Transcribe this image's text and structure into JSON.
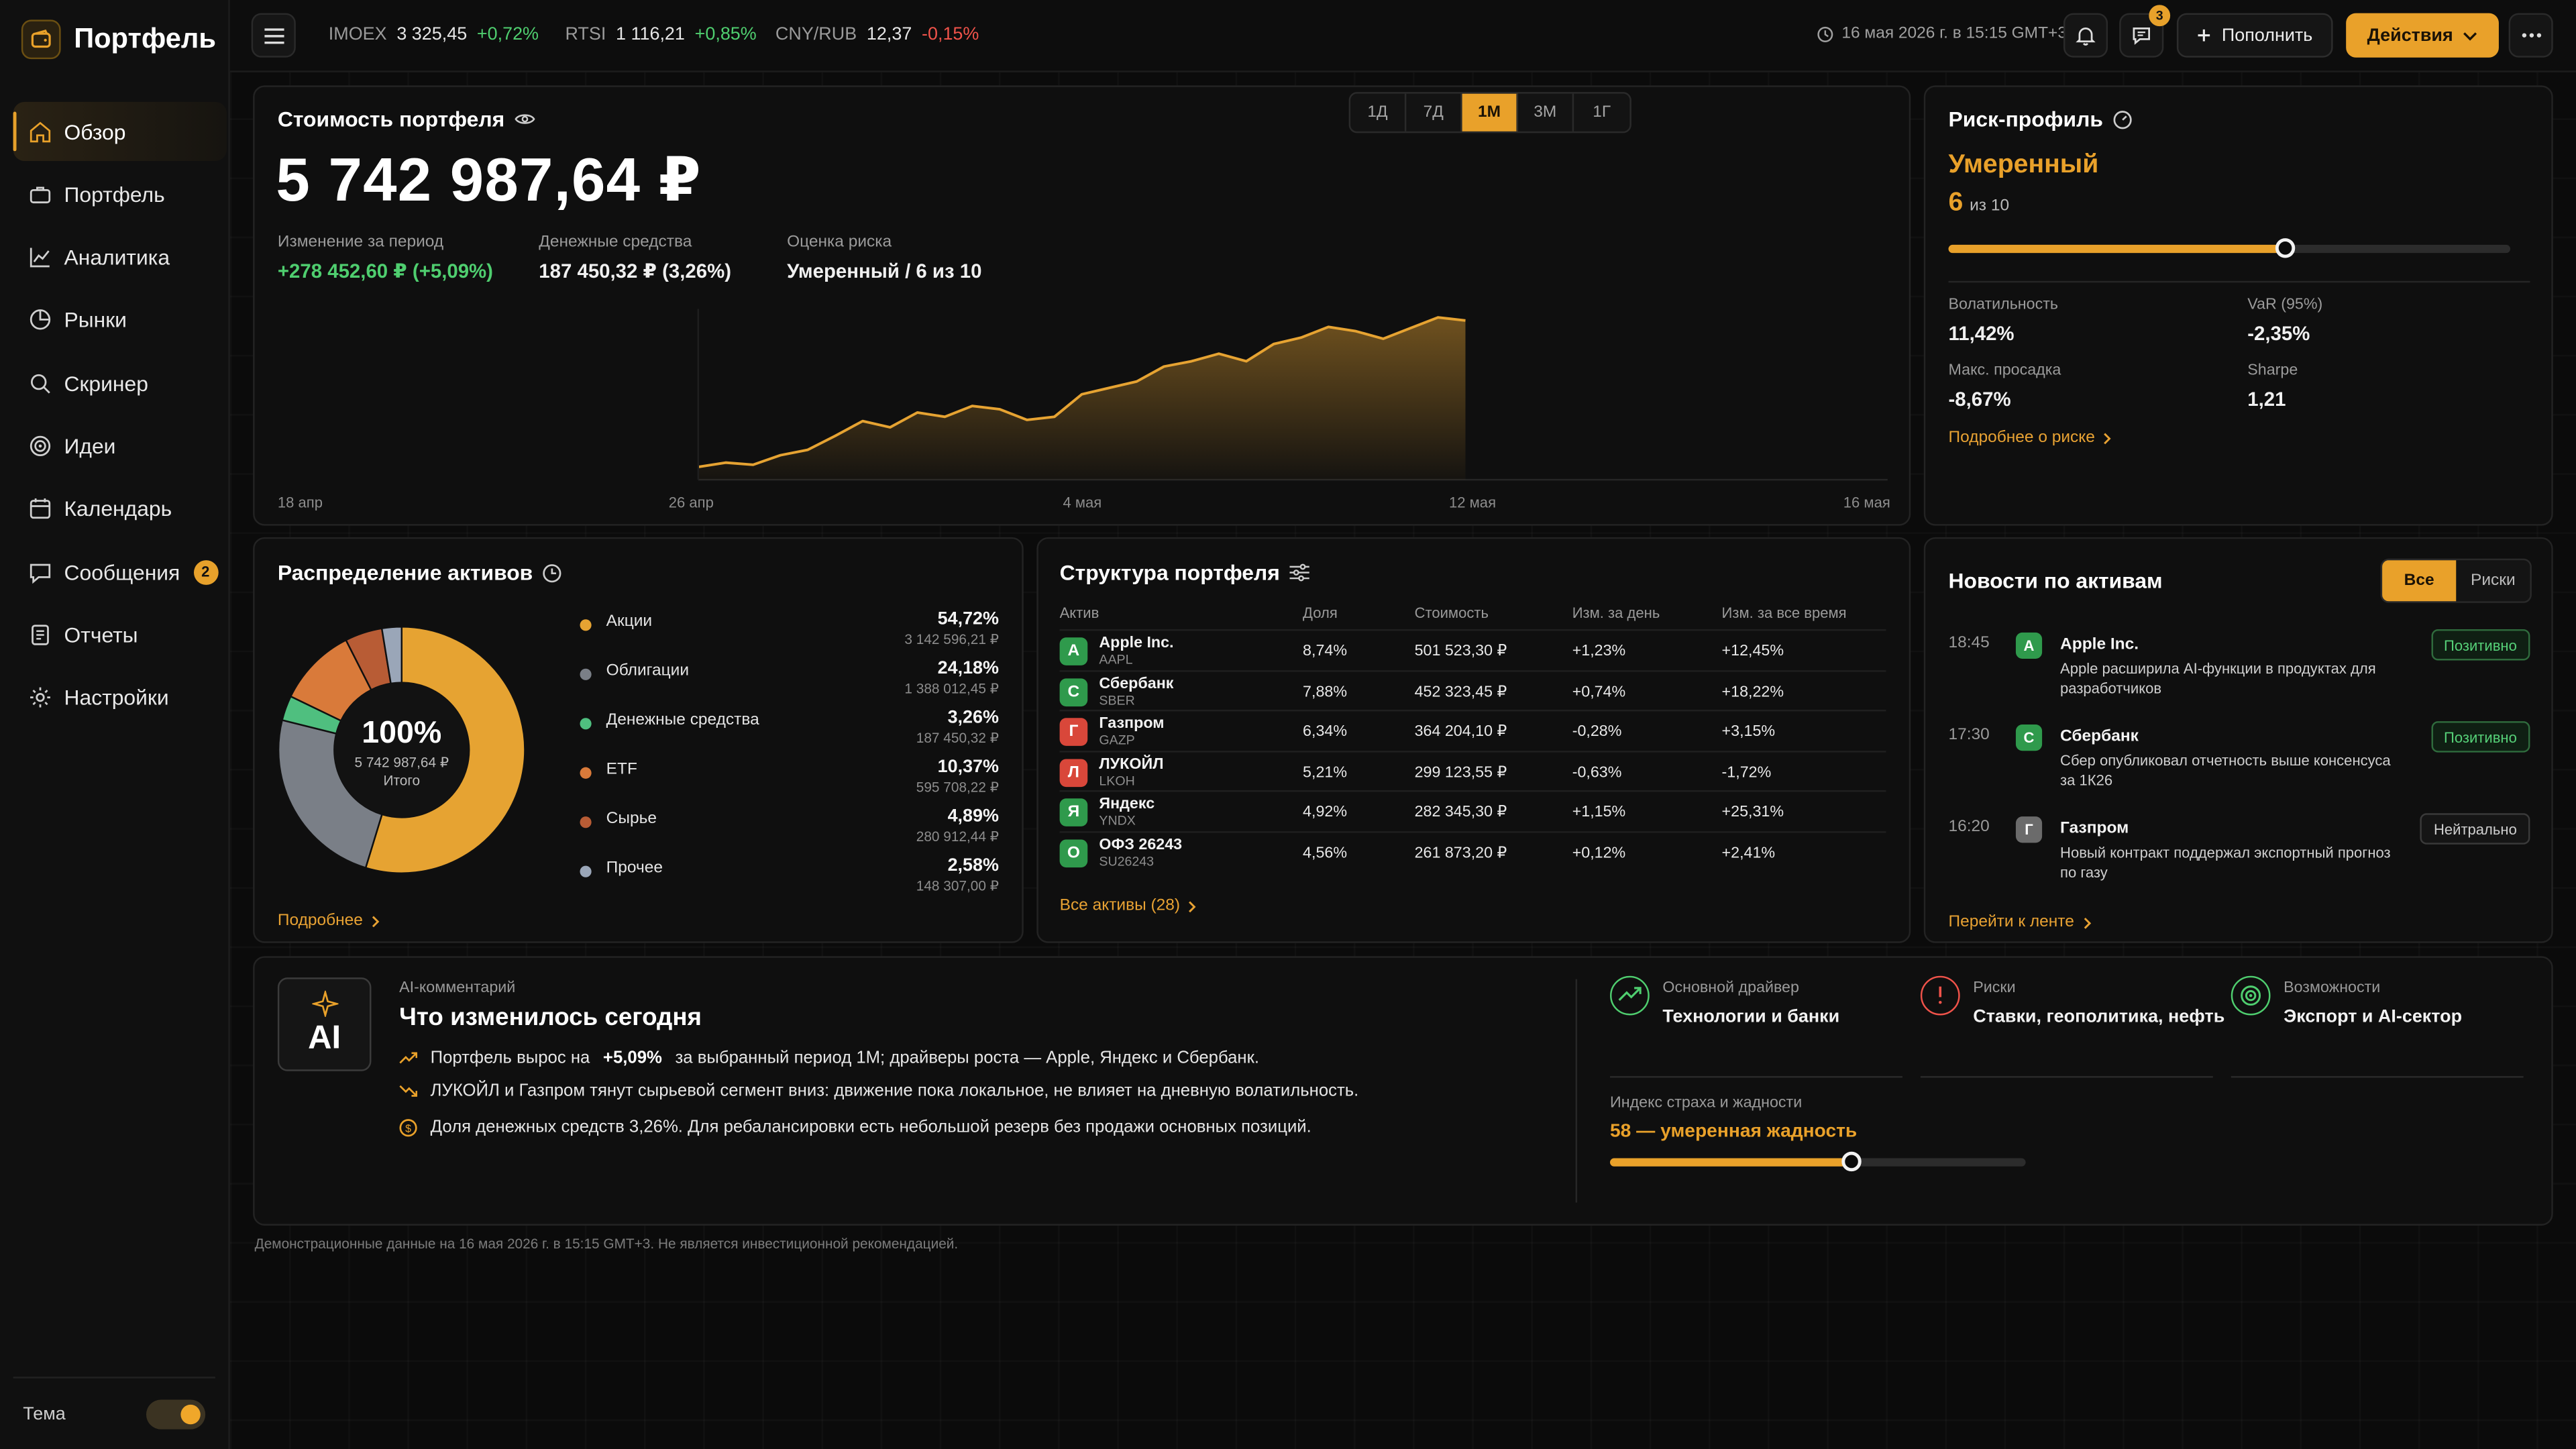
{
  "app": {
    "title": "Портфель"
  },
  "sidebar": {
    "items": [
      {
        "label": "Обзор",
        "icon": "home-icon",
        "active": true
      },
      {
        "label": "Портфель",
        "icon": "briefcase-icon"
      },
      {
        "label": "Аналитика",
        "icon": "chart-line-icon"
      },
      {
        "label": "Рынки",
        "icon": "pie-icon"
      },
      {
        "label": "Скринер",
        "icon": "search-icon"
      },
      {
        "label": "Идеи",
        "icon": "target-icon"
      },
      {
        "label": "Календарь",
        "icon": "calendar-icon"
      },
      {
        "label": "Сообщения",
        "icon": "message-icon",
        "badge": "2"
      },
      {
        "label": "Отчеты",
        "icon": "report-icon"
      },
      {
        "label": "Настройки",
        "icon": "gear-icon"
      }
    ],
    "theme_label": "Тема"
  },
  "topbar": {
    "tickers": [
      {
        "name": "IMOEX",
        "value": "3 325,45",
        "change": "+0,72%",
        "dir": "up"
      },
      {
        "name": "RTSI",
        "value": "1 116,21",
        "change": "+0,85%",
        "dir": "up"
      },
      {
        "name": "CNY/RUB",
        "value": "12,37",
        "change": "-0,15%",
        "dir": "down"
      }
    ],
    "datetime": "16 мая 2026 г. в 15:15 GMT+3",
    "messages_badge": "3",
    "deposit_label": "Пополнить",
    "actions_label": "Действия"
  },
  "portfolio": {
    "title": "Стоимость портфеля",
    "value": "5 742 987,64 ₽",
    "periods": [
      "1Д",
      "7Д",
      "1М",
      "3М",
      "1Г"
    ],
    "active_period": "1М",
    "stats": [
      {
        "label": "Изменение за период",
        "value": "+278 452,60 ₽ (+5,09%)",
        "positive": true
      },
      {
        "label": "Денежные средства",
        "value": "187 450,32 ₽ (3,26%)"
      },
      {
        "label": "Оценка риска",
        "value": "Умеренный / 6 из 10"
      }
    ],
    "x_ticks": [
      "18 апр",
      "26 апр",
      "4 мая",
      "12 мая",
      "16 мая"
    ]
  },
  "chart_data": {
    "type": "area",
    "x": [
      "18 апр",
      "19 апр",
      "20 апр",
      "21 апр",
      "22 апр",
      "23 апр",
      "24 апр",
      "25 апр",
      "26 апр",
      "27 апр",
      "28 апр",
      "29 апр",
      "30 апр",
      "1 мая",
      "2 мая",
      "3 мая",
      "4 мая",
      "5 мая",
      "6 мая",
      "7 мая",
      "8 мая",
      "9 мая",
      "10 мая",
      "11 мая",
      "12 мая",
      "13 мая",
      "14 мая",
      "15 мая",
      "16 мая"
    ],
    "values": [
      5.464,
      5.472,
      5.468,
      5.486,
      5.496,
      5.522,
      5.55,
      5.538,
      5.566,
      5.558,
      5.578,
      5.572,
      5.552,
      5.558,
      5.6,
      5.612,
      5.624,
      5.652,
      5.662,
      5.676,
      5.662,
      5.694,
      5.706,
      5.726,
      5.718,
      5.704,
      5.724,
      5.744,
      5.738
    ],
    "ylim": [
      5.44,
      5.76
    ],
    "series_color": "#e6a332"
  },
  "risk": {
    "title": "Риск-профиль",
    "level": "Умеренный",
    "score": "6",
    "score_suffix": "из 10",
    "score_fraction": 0.6,
    "metrics": [
      {
        "label": "Волатильность",
        "value": "11,42%"
      },
      {
        "label": "VaR (95%)",
        "value": "-2,35%"
      },
      {
        "label": "Макс. просадка",
        "value": "-8,67%"
      },
      {
        "label": "Sharpe",
        "value": "1,21"
      }
    ],
    "link": "Подробнее о риске"
  },
  "allocation": {
    "title": "Распределение активов",
    "center_pct": "100%",
    "center_value": "5 742 987,64 ₽",
    "center_label": "Итого",
    "items": [
      {
        "name": "Акции",
        "pct": "54,72%",
        "amount": "3 142 596,21 ₽",
        "value": 54.72,
        "color": "#e6a332"
      },
      {
        "name": "Облигации",
        "pct": "24,18%",
        "amount": "1 388 012,45 ₽",
        "value": 24.18,
        "color": "#7a7f87"
      },
      {
        "name": "Денежные средства",
        "pct": "3,26%",
        "amount": "187 450,32 ₽",
        "value": 3.26,
        "color": "#4fbf7f"
      },
      {
        "name": "ETF",
        "pct": "10,37%",
        "amount": "595 708,22 ₽",
        "value": 10.37,
        "color": "#d97a3a"
      },
      {
        "name": "Сырье",
        "pct": "4,89%",
        "amount": "280 912,44 ₽",
        "value": 4.89,
        "color": "#b85c35"
      },
      {
        "name": "Прочее",
        "pct": "2,58%",
        "amount": "148 307,00 ₽",
        "value": 2.58,
        "color": "#9aa6b8"
      }
    ],
    "link": "Подробнее"
  },
  "structure": {
    "title": "Структура портфеля",
    "columns": [
      "Актив",
      "Доля",
      "Стоимость",
      "Изм. за день",
      "Изм. за все время"
    ],
    "rows": [
      {
        "letter": "A",
        "color": "#2f9a4c",
        "name": "Apple Inc.",
        "ticker": "AAPL",
        "share": "8,74%",
        "value": "501 523,30 ₽",
        "day": "+1,23%",
        "total": "+12,45%",
        "day_up": true,
        "total_up": true
      },
      {
        "letter": "С",
        "color": "#2f9a4c",
        "name": "Сбербанк",
        "ticker": "SBER",
        "share": "7,88%",
        "value": "452 323,45 ₽",
        "day": "+0,74%",
        "total": "+18,22%",
        "day_up": true,
        "total_up": true
      },
      {
        "letter": "Г",
        "color": "#d9473a",
        "name": "Газпром",
        "ticker": "GAZP",
        "share": "6,34%",
        "value": "364 204,10 ₽",
        "day": "-0,28%",
        "total": "+3,15%",
        "day_up": false,
        "total_up": true
      },
      {
        "letter": "Л",
        "color": "#d9473a",
        "name": "ЛУКОЙЛ",
        "ticker": "LKOH",
        "share": "5,21%",
        "value": "299 123,55 ₽",
        "day": "-0,63%",
        "total": "-1,72%",
        "day_up": false,
        "total_up": false
      },
      {
        "letter": "Я",
        "color": "#2f9a4c",
        "name": "Яндекс",
        "ticker": "YNDX",
        "share": "4,92%",
        "value": "282 345,30 ₽",
        "day": "+1,15%",
        "total": "+25,31%",
        "day_up": true,
        "total_up": true
      },
      {
        "letter": "О",
        "color": "#2f9a4c",
        "name": "ОФЗ 26243",
        "ticker": "SU26243",
        "share": "4,56%",
        "value": "261 873,20 ₽",
        "day": "+0,12%",
        "total": "+2,41%",
        "day_up": true,
        "total_up": true
      }
    ],
    "link": "Все активы (28)"
  },
  "news": {
    "title": "Новости по активам",
    "tabs": [
      "Все",
      "Риски"
    ],
    "items": [
      {
        "time": "18:45",
        "letter": "A",
        "color": "#2f9a4c",
        "company": "Apple Inc.",
        "text": "Apple расширила AI-функции в продуктах для разработчиков",
        "tag": "Позитивно",
        "tone": "pos"
      },
      {
        "time": "17:30",
        "letter": "С",
        "color": "#2f9a4c",
        "company": "Сбербанк",
        "text": "Сбер опубликовал отчетность выше консенсуса за 1К26",
        "tag": "Позитивно",
        "tone": "pos"
      },
      {
        "time": "16:20",
        "letter": "Г",
        "color": "#6b6b6b",
        "company": "Газпром",
        "text": "Новый контракт поддержал экспортный прогноз по газу",
        "tag": "Нейтрально",
        "tone": "neu"
      }
    ],
    "link": "Перейти к ленте"
  },
  "ai": {
    "badge": "AI",
    "eyebrow": "AI-комментарий",
    "title": "Что изменилось сегодня",
    "line1_prefix": "Портфель вырос на",
    "line1_bold": "+5,09%",
    "line1_suffix": "за выбранный период 1М; драйверы роста — Apple, Яндекс и Сбербанк.",
    "line2": "ЛУКОЙЛ и Газпром тянут сырьевой сегмент вниз: движение пока локальное, не влияет на дневную волатильность.",
    "line3": "Доля денежных средств 3,26%. Для ребалансировки есть небольшой резерв без продажи основных позиций.",
    "drivers": [
      {
        "label": "Основной драйвер",
        "value": "Технологии и банки",
        "icon": "trend-up-icon",
        "color": "#4fce6f"
      },
      {
        "label": "Риски",
        "value": "Ставки, геополитика, нефть",
        "icon": "alert-icon",
        "color": "#f0534a"
      },
      {
        "label": "Возможности",
        "value": "Экспорт и AI-сектор",
        "icon": "target-icon",
        "color": "#4fce6f"
      }
    ],
    "fear_greed_label": "Индекс страха и жадности",
    "fear_greed_value": "58 — умеренная жадность",
    "fear_greed_fraction": 0.58
  },
  "footer": {
    "disclaimer": "Демонстрационные данные на 16 мая 2026 г. в 15:15 GMT+3. Не является инвестиционной рекомендацией."
  }
}
